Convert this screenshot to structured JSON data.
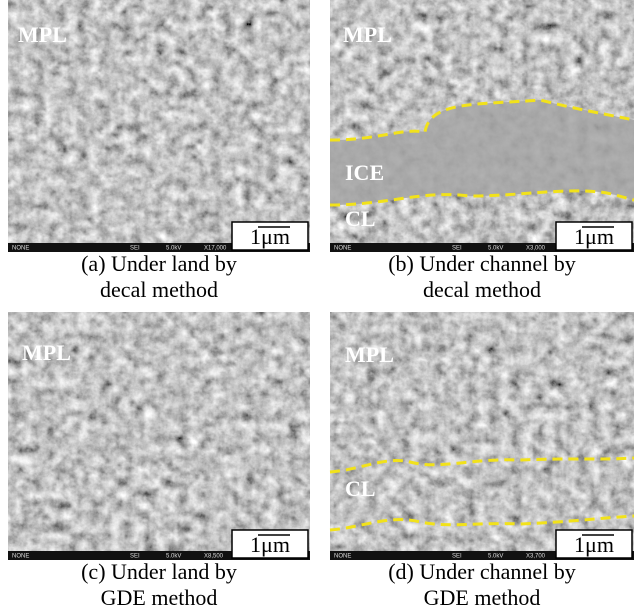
{
  "panels": [
    {
      "labels": [
        "MPL"
      ],
      "scale_bar": "1μm",
      "footer": [
        "NONE",
        "SEI",
        "5.0kV",
        "X17,000"
      ],
      "caption": [
        "(a) Under land by",
        "decal method"
      ]
    },
    {
      "labels": [
        "MPL",
        "ICE",
        "CL"
      ],
      "scale_bar": "1μm",
      "footer": [
        "NONE",
        "SEI",
        "5.0kV",
        "X3,000"
      ],
      "caption": [
        "(b) Under channel by",
        "decal method"
      ]
    },
    {
      "labels": [
        "MPL"
      ],
      "scale_bar": "1μm",
      "footer": [
        "NONE",
        "SEI",
        "5.0kV",
        "X8,500"
      ],
      "caption": [
        "(c) Under land by",
        "GDE method"
      ]
    },
    {
      "labels": [
        "MPL",
        "CL"
      ],
      "scale_bar": "1μm",
      "footer": [
        "NONE",
        "SEI",
        "5.0kV",
        "X3,700"
      ],
      "caption": [
        "(d) Under channel by",
        "GDE method"
      ]
    }
  ]
}
